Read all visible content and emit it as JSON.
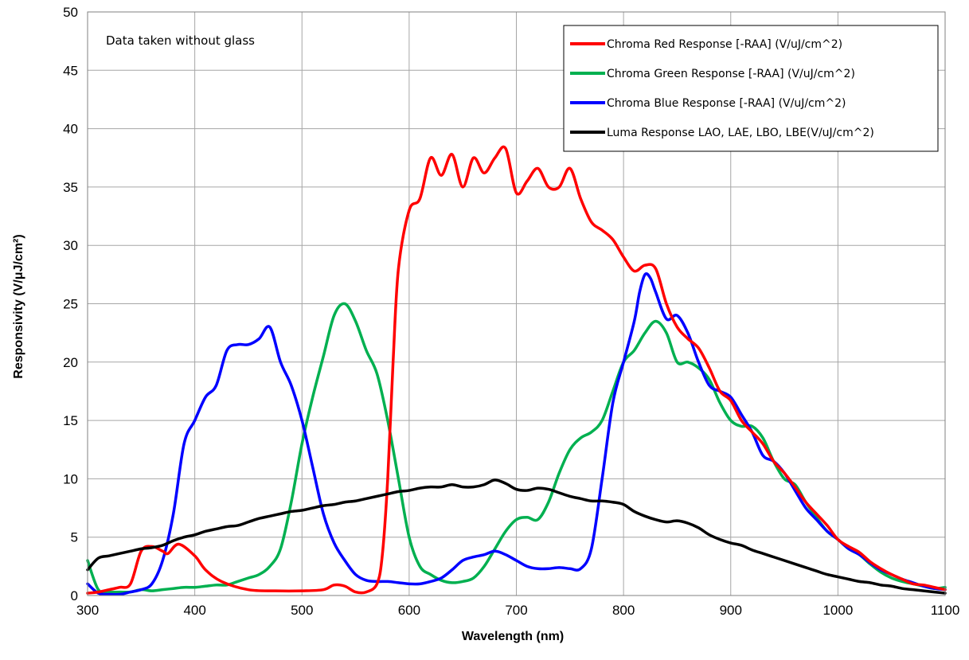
{
  "chart_data": {
    "type": "line",
    "title": "",
    "xlabel": "Wavelength (nm)",
    "ylabel": "Responsivity (V/μJ/cm²)",
    "xlim": [
      300,
      1100
    ],
    "ylim": [
      0,
      50
    ],
    "x_ticks": [
      300,
      400,
      500,
      600,
      700,
      800,
      900,
      1000,
      1100
    ],
    "y_ticks": [
      0,
      5,
      10,
      15,
      20,
      25,
      30,
      35,
      40,
      45,
      50
    ],
    "grid": true,
    "legend_position": "top-right",
    "annotation": "Data taken without glass",
    "series": [
      {
        "name": "Chroma Red Response [-RAA] (V/uJ/cm^2)",
        "color": "#ff0000",
        "x": [
          300,
          310,
          320,
          330,
          340,
          350,
          360,
          370,
          375,
          385,
          400,
          410,
          425,
          450,
          475,
          500,
          520,
          530,
          540,
          550,
          560,
          570,
          575,
          580,
          585,
          590,
          600,
          610,
          620,
          630,
          640,
          650,
          660,
          670,
          680,
          690,
          700,
          710,
          720,
          730,
          740,
          750,
          760,
          770,
          780,
          790,
          800,
          810,
          820,
          830,
          840,
          850,
          860,
          870,
          880,
          890,
          900,
          910,
          920,
          930,
          940,
          950,
          960,
          970,
          980,
          990,
          1000,
          1010,
          1020,
          1030,
          1040,
          1050,
          1060,
          1070,
          1080,
          1090,
          1100
        ],
        "y": [
          0.2,
          0.3,
          0.5,
          0.7,
          1.0,
          3.8,
          4.2,
          3.8,
          3.6,
          4.4,
          3.4,
          2.2,
          1.2,
          0.5,
          0.4,
          0.4,
          0.5,
          0.9,
          0.8,
          0.3,
          0.3,
          1.0,
          3.5,
          10.0,
          20.0,
          28.0,
          33.0,
          34.0,
          37.5,
          36.0,
          37.8,
          35.0,
          37.5,
          36.2,
          37.5,
          38.3,
          34.5,
          35.5,
          36.6,
          35.0,
          35.0,
          36.6,
          34.0,
          32.0,
          31.3,
          30.5,
          29.0,
          27.8,
          28.3,
          28.0,
          25.0,
          23.0,
          22.0,
          21.2,
          19.5,
          17.5,
          16.7,
          15.0,
          14.0,
          13.0,
          11.5,
          10.5,
          9.3,
          8.0,
          7.0,
          6.0,
          4.8,
          4.2,
          3.7,
          2.9,
          2.3,
          1.8,
          1.4,
          1.0,
          0.9,
          0.7,
          0.5
        ]
      },
      {
        "name": "Chroma Green Response [-RAA] (V/uJ/cm^2)",
        "color": "#00b050",
        "x": [
          300,
          310,
          320,
          330,
          340,
          350,
          360,
          370,
          380,
          390,
          400,
          410,
          420,
          430,
          440,
          450,
          460,
          470,
          480,
          490,
          500,
          510,
          520,
          530,
          540,
          550,
          560,
          570,
          580,
          590,
          600,
          610,
          620,
          630,
          640,
          650,
          660,
          670,
          680,
          690,
          700,
          710,
          720,
          730,
          740,
          750,
          760,
          770,
          780,
          790,
          800,
          810,
          820,
          830,
          840,
          850,
          860,
          870,
          880,
          890,
          900,
          910,
          920,
          930,
          940,
          950,
          960,
          970,
          980,
          990,
          1000,
          1010,
          1020,
          1030,
          1040,
          1050,
          1060,
          1070,
          1080,
          1090,
          1100
        ],
        "y": [
          3.0,
          0.5,
          0.3,
          0.3,
          0.3,
          0.5,
          0.4,
          0.5,
          0.6,
          0.7,
          0.7,
          0.8,
          0.9,
          0.9,
          1.2,
          1.5,
          1.8,
          2.5,
          4.0,
          8.0,
          13.0,
          17.0,
          20.5,
          24.0,
          25.0,
          23.5,
          21.0,
          19.0,
          15.0,
          10.0,
          5.0,
          2.5,
          1.8,
          1.3,
          1.1,
          1.2,
          1.5,
          2.5,
          4.0,
          5.5,
          6.5,
          6.7,
          6.5,
          8.0,
          10.5,
          12.5,
          13.5,
          14.0,
          15.0,
          17.5,
          20.0,
          21.0,
          22.5,
          23.5,
          22.5,
          20.0,
          20.0,
          19.5,
          18.5,
          16.5,
          15.0,
          14.5,
          14.5,
          13.5,
          11.5,
          10.0,
          9.5,
          8.0,
          6.7,
          5.5,
          4.8,
          4.0,
          3.5,
          2.7,
          2.0,
          1.5,
          1.2,
          1.0,
          0.8,
          0.6,
          0.7
        ]
      },
      {
        "name": "Chroma Blue Response [-RAA] (V/uJ/cm^2)",
        "color": "#0000ff",
        "x": [
          300,
          310,
          320,
          330,
          340,
          350,
          360,
          370,
          380,
          390,
          400,
          410,
          420,
          430,
          440,
          450,
          460,
          470,
          480,
          490,
          500,
          510,
          520,
          530,
          540,
          550,
          560,
          570,
          580,
          590,
          600,
          610,
          620,
          630,
          640,
          650,
          660,
          670,
          680,
          690,
          700,
          710,
          720,
          730,
          740,
          750,
          760,
          770,
          780,
          790,
          800,
          810,
          815,
          820,
          825,
          830,
          840,
          850,
          860,
          870,
          880,
          890,
          900,
          910,
          920,
          930,
          940,
          950,
          960,
          970,
          980,
          990,
          1000,
          1010,
          1020,
          1030,
          1040,
          1050,
          1060,
          1070,
          1080,
          1090,
          1100
        ],
        "y": [
          1.0,
          0.2,
          0.1,
          0.1,
          0.3,
          0.5,
          1.0,
          3.0,
          7.0,
          13.0,
          15.0,
          17.0,
          18.0,
          21.0,
          21.5,
          21.5,
          22.0,
          23.0,
          20.0,
          18.0,
          15.0,
          11.0,
          7.0,
          4.5,
          3.0,
          1.8,
          1.3,
          1.2,
          1.2,
          1.1,
          1.0,
          1.0,
          1.2,
          1.5,
          2.2,
          3.0,
          3.3,
          3.5,
          3.8,
          3.5,
          3.0,
          2.5,
          2.3,
          2.3,
          2.4,
          2.3,
          2.3,
          4.0,
          10.0,
          16.5,
          20.0,
          23.5,
          26.0,
          27.5,
          27.2,
          26.0,
          23.7,
          24.0,
          22.5,
          20.0,
          18.0,
          17.5,
          17.0,
          15.5,
          14.0,
          12.0,
          11.5,
          10.5,
          9.0,
          7.5,
          6.5,
          5.5,
          4.8,
          4.0,
          3.5,
          2.8,
          2.2,
          1.8,
          1.4,
          1.1,
          0.8,
          0.6,
          0.5
        ]
      },
      {
        "name": "Luma Response LAO, LAE, LBO, LBE(V/uJ/cm^2)",
        "color": "#000000",
        "x": [
          300,
          310,
          320,
          330,
          340,
          350,
          360,
          370,
          380,
          390,
          400,
          410,
          420,
          430,
          440,
          450,
          460,
          470,
          480,
          490,
          500,
          510,
          520,
          530,
          540,
          550,
          560,
          570,
          580,
          590,
          600,
          610,
          620,
          630,
          640,
          650,
          660,
          670,
          680,
          690,
          700,
          710,
          720,
          730,
          740,
          750,
          760,
          770,
          780,
          790,
          800,
          810,
          820,
          830,
          840,
          850,
          860,
          870,
          880,
          890,
          900,
          910,
          920,
          930,
          940,
          950,
          960,
          970,
          980,
          990,
          1000,
          1010,
          1020,
          1030,
          1040,
          1050,
          1060,
          1070,
          1080,
          1090,
          1100
        ],
        "y": [
          2.2,
          3.2,
          3.4,
          3.6,
          3.8,
          4.0,
          4.1,
          4.3,
          4.7,
          5.0,
          5.2,
          5.5,
          5.7,
          5.9,
          6.0,
          6.3,
          6.6,
          6.8,
          7.0,
          7.2,
          7.3,
          7.5,
          7.7,
          7.8,
          8.0,
          8.1,
          8.3,
          8.5,
          8.7,
          8.9,
          9.0,
          9.2,
          9.3,
          9.3,
          9.5,
          9.3,
          9.3,
          9.5,
          9.9,
          9.6,
          9.1,
          9.0,
          9.2,
          9.1,
          8.8,
          8.5,
          8.3,
          8.1,
          8.1,
          8.0,
          7.8,
          7.2,
          6.8,
          6.5,
          6.3,
          6.4,
          6.2,
          5.8,
          5.2,
          4.8,
          4.5,
          4.3,
          3.9,
          3.6,
          3.3,
          3.0,
          2.7,
          2.4,
          2.1,
          1.8,
          1.6,
          1.4,
          1.2,
          1.1,
          0.9,
          0.8,
          0.6,
          0.5,
          0.4,
          0.3,
          0.2
        ]
      }
    ]
  }
}
